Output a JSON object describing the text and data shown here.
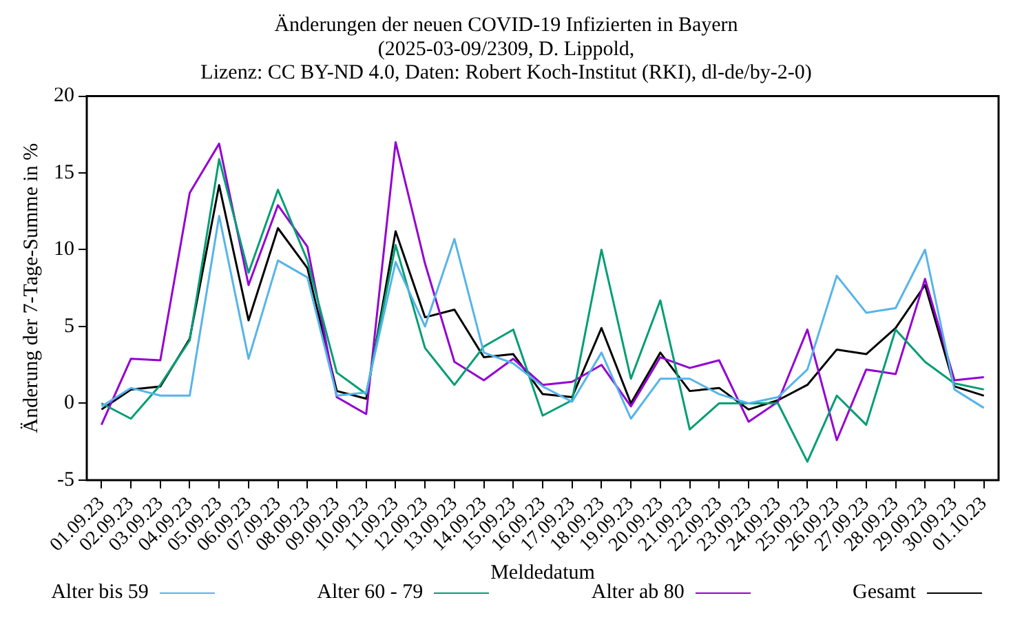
{
  "chart_data": {
    "type": "line",
    "title": "Änderungen der neuen COVID-19 Infizierten in Bayern",
    "subtitle": "(2025-03-09/2309, D. Lippold,\nLizenz: CC BY-ND 4.0, Daten: Robert Koch-Institut (RKI), dl-de/by-2-0)",
    "xlabel": "Meldedatum",
    "ylabel": "Änderung der 7-Tage-Summe in %",
    "categories": [
      "01.09.23",
      "02.09.23",
      "03.09.23",
      "04.09.23",
      "05.09.23",
      "06.09.23",
      "07.09.23",
      "08.09.23",
      "09.09.23",
      "10.09.23",
      "11.09.23",
      "12.09.23",
      "13.09.23",
      "14.09.23",
      "15.09.23",
      "16.09.23",
      "17.09.23",
      "18.09.23",
      "19.09.23",
      "20.09.23",
      "21.09.23",
      "22.09.23",
      "23.09.23",
      "24.09.23",
      "25.09.23",
      "26.09.23",
      "27.09.23",
      "28.09.23",
      "29.09.23",
      "30.09.23",
      "01.10.23"
    ],
    "series": [
      {
        "name": "Alter bis 59",
        "color": "#56b4e9",
        "values": [
          -0.2,
          1.0,
          0.5,
          0.5,
          12.2,
          2.9,
          9.3,
          8.2,
          0.5,
          0.7,
          9.2,
          5.0,
          10.7,
          3.3,
          2.6,
          1.1,
          0.1,
          3.3,
          -1.0,
          1.6,
          1.6,
          0.6,
          0,
          0.4,
          2.2,
          8.3,
          5.9,
          6.2,
          10.0,
          0.9,
          -0.3
        ]
      },
      {
        "name": "Alter 60 - 79",
        "color": "#009e73",
        "values": [
          0,
          -1.0,
          1.2,
          4.1,
          15.9,
          8.5,
          13.9,
          9.3,
          2.0,
          0.6,
          10.3,
          3.6,
          1.2,
          3.7,
          4.8,
          -0.8,
          0.2,
          10.0,
          1.6,
          6.7,
          -1.7,
          0,
          0,
          0,
          -3.8,
          0.5,
          -1.4,
          4.8,
          2.7,
          1.3,
          0.9
        ]
      },
      {
        "name": "Alter ab 80",
        "color": "#9400d3",
        "values": [
          -1.4,
          2.9,
          2.8,
          13.7,
          16.9,
          7.7,
          12.9,
          10.2,
          0.4,
          -0.7,
          17.0,
          9.1,
          2.7,
          1.5,
          2.9,
          1.2,
          1.4,
          2.5,
          -0.2,
          3.0,
          2.3,
          2.8,
          -1.2,
          0.1,
          4.8,
          -2.4,
          2.2,
          1.9,
          8.1,
          1.5,
          1.7
        ]
      },
      {
        "name": "Gesamt",
        "color": "#000000",
        "values": [
          -0.4,
          0.9,
          1.1,
          4.2,
          14.2,
          5.4,
          11.4,
          8.8,
          0.8,
          0.3,
          11.2,
          5.6,
          6.1,
          3.0,
          3.2,
          0.6,
          0.4,
          4.9,
          0,
          3.3,
          0.8,
          1.0,
          -0.4,
          0.2,
          1.2,
          3.5,
          3.2,
          4.9,
          7.7,
          1.1,
          0.5
        ]
      }
    ],
    "ylim": [
      -5,
      20
    ],
    "yticks": [
      -5,
      0,
      5,
      10,
      15,
      20
    ],
    "grid": false,
    "legend": "bottom",
    "marker": "none",
    "line_style": "solid"
  }
}
